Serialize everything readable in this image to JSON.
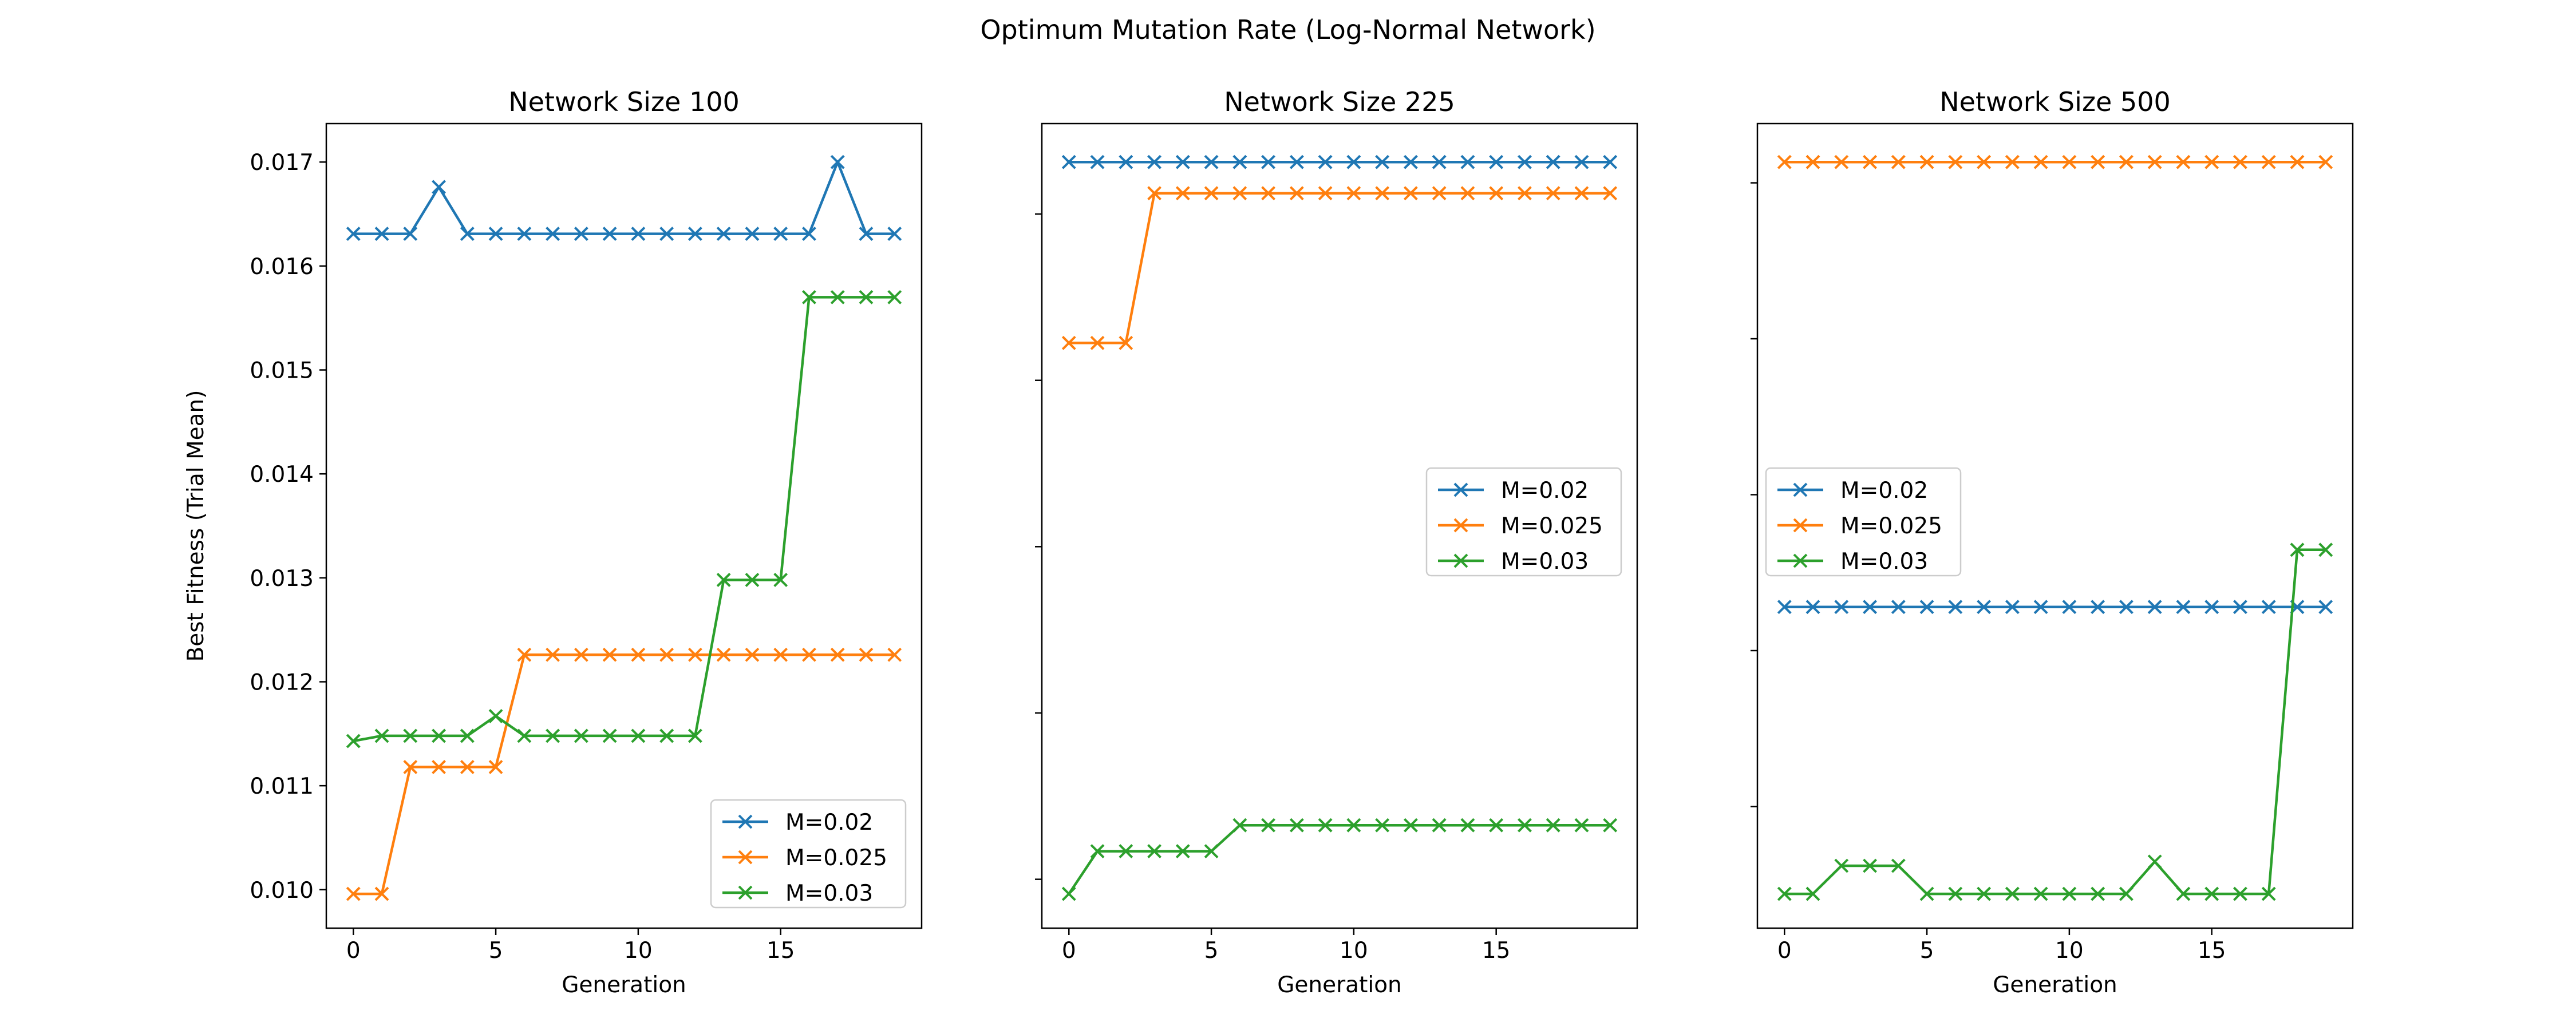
{
  "suptitle": "Optimum Mutation Rate (Log-Normal Network)",
  "colors": {
    "M=0.02": "#1f77b4",
    "M=0.025": "#ff7f0e",
    "M=0.03": "#2ca02c"
  },
  "chart_data": [
    {
      "type": "line",
      "title": "Network Size 100",
      "xlabel": "Generation",
      "ylabel": "Best Fitness (Trial Mean)",
      "marker": "x",
      "x": [
        0,
        1,
        2,
        3,
        4,
        5,
        6,
        7,
        8,
        9,
        10,
        11,
        12,
        13,
        14,
        15,
        16,
        17,
        18,
        19
      ],
      "xlim": [
        -0.95,
        19.95
      ],
      "ylim": [
        0.00963,
        0.01737
      ],
      "xticks": [
        0,
        5,
        10,
        15
      ],
      "yticks": [
        0.01,
        0.011,
        0.012,
        0.013,
        0.014,
        0.015,
        0.016,
        0.017
      ],
      "ytick_labels": [
        "0.010",
        "0.011",
        "0.012",
        "0.013",
        "0.014",
        "0.015",
        "0.016",
        "0.017"
      ],
      "legend": "lower-right",
      "series": [
        {
          "name": "M=0.02",
          "color": "#1f77b4",
          "values": [
            0.01631,
            0.01631,
            0.01631,
            0.01676,
            0.01631,
            0.01631,
            0.01631,
            0.01631,
            0.01631,
            0.01631,
            0.01631,
            0.01631,
            0.01631,
            0.01631,
            0.01631,
            0.01631,
            0.01631,
            0.017,
            0.01631,
            0.01631
          ]
        },
        {
          "name": "M=0.025",
          "color": "#ff7f0e",
          "values": [
            0.00996,
            0.00996,
            0.01118,
            0.01118,
            0.01118,
            0.01118,
            0.01226,
            0.01226,
            0.01226,
            0.01226,
            0.01226,
            0.01226,
            0.01226,
            0.01226,
            0.01226,
            0.01226,
            0.01226,
            0.01226,
            0.01226,
            0.01226
          ]
        },
        {
          "name": "M=0.03",
          "color": "#2ca02c",
          "values": [
            0.01143,
            0.01148,
            0.01148,
            0.01148,
            0.01148,
            0.01167,
            0.01148,
            0.01148,
            0.01148,
            0.01148,
            0.01148,
            0.01148,
            0.01148,
            0.01298,
            0.01298,
            0.01298,
            0.0157,
            0.0157,
            0.0157,
            0.0157
          ]
        }
      ]
    },
    {
      "type": "line",
      "title": "Network Size 225",
      "xlabel": "Generation",
      "ylabel": "",
      "marker": "x",
      "x": [
        0,
        1,
        2,
        3,
        4,
        5,
        6,
        7,
        8,
        9,
        10,
        11,
        12,
        13,
        14,
        15,
        16,
        17,
        18,
        19
      ],
      "xlim": [
        -0.95,
        19.95
      ],
      "ylim": [
        0.00963,
        0.01737
      ],
      "xticks": [
        0,
        5,
        10,
        15
      ],
      "yticks": [
        0.0101,
        0.0117,
        0.0133,
        0.0149,
        0.0165
      ],
      "ytick_labels": [
        "",
        "",
        "",
        "",
        ""
      ],
      "legend": "center-right",
      "series": [
        {
          "name": "M=0.02",
          "color": "#1f77b4",
          "values": [
            0.017,
            0.017,
            0.017,
            0.017,
            0.017,
            0.017,
            0.017,
            0.017,
            0.017,
            0.017,
            0.017,
            0.017,
            0.017,
            0.017,
            0.017,
            0.017,
            0.017,
            0.017,
            0.017,
            0.017
          ]
        },
        {
          "name": "M=0.025",
          "color": "#ff7f0e",
          "values": [
            0.01526,
            0.01526,
            0.01526,
            0.0167,
            0.0167,
            0.0167,
            0.0167,
            0.0167,
            0.0167,
            0.0167,
            0.0167,
            0.0167,
            0.0167,
            0.0167,
            0.0167,
            0.0167,
            0.0167,
            0.0167,
            0.0167,
            0.0167
          ]
        },
        {
          "name": "M=0.03",
          "color": "#2ca02c",
          "values": [
            0.00996,
            0.01037,
            0.01037,
            0.01037,
            0.01037,
            0.01037,
            0.01062,
            0.01062,
            0.01062,
            0.01062,
            0.01062,
            0.01062,
            0.01062,
            0.01062,
            0.01062,
            0.01062,
            0.01062,
            0.01062,
            0.01062,
            0.01062
          ]
        }
      ]
    },
    {
      "type": "line",
      "title": "Network Size 500",
      "xlabel": "Generation",
      "ylabel": "",
      "marker": "x",
      "x": [
        0,
        1,
        2,
        3,
        4,
        5,
        6,
        7,
        8,
        9,
        10,
        11,
        12,
        13,
        14,
        15,
        16,
        17,
        18,
        19
      ],
      "xlim": [
        -0.95,
        19.95
      ],
      "ylim": [
        0.00963,
        0.01737
      ],
      "xticks": [
        0,
        5,
        10,
        15
      ],
      "yticks": [
        0.0108,
        0.0123,
        0.0138,
        0.0153,
        0.0168
      ],
      "ytick_labels": [
        "",
        "",
        "",
        "",
        ""
      ],
      "legend": "center-left",
      "series": [
        {
          "name": "M=0.02",
          "color": "#1f77b4",
          "values": [
            0.01272,
            0.01272,
            0.01272,
            0.01272,
            0.01272,
            0.01272,
            0.01272,
            0.01272,
            0.01272,
            0.01272,
            0.01272,
            0.01272,
            0.01272,
            0.01272,
            0.01272,
            0.01272,
            0.01272,
            0.01272,
            0.01272,
            0.01272
          ]
        },
        {
          "name": "M=0.025",
          "color": "#ff7f0e",
          "values": [
            0.017,
            0.017,
            0.017,
            0.017,
            0.017,
            0.017,
            0.017,
            0.017,
            0.017,
            0.017,
            0.017,
            0.017,
            0.017,
            0.017,
            0.017,
            0.017,
            0.017,
            0.017,
            0.017,
            0.017
          ]
        },
        {
          "name": "M=0.03",
          "color": "#2ca02c",
          "values": [
            0.00996,
            0.00996,
            0.01023,
            0.01023,
            0.01023,
            0.00996,
            0.00996,
            0.00996,
            0.00996,
            0.00996,
            0.00996,
            0.00996,
            0.00996,
            0.01027,
            0.00996,
            0.00996,
            0.00996,
            0.00996,
            0.01327,
            0.01327
          ]
        }
      ]
    }
  ]
}
